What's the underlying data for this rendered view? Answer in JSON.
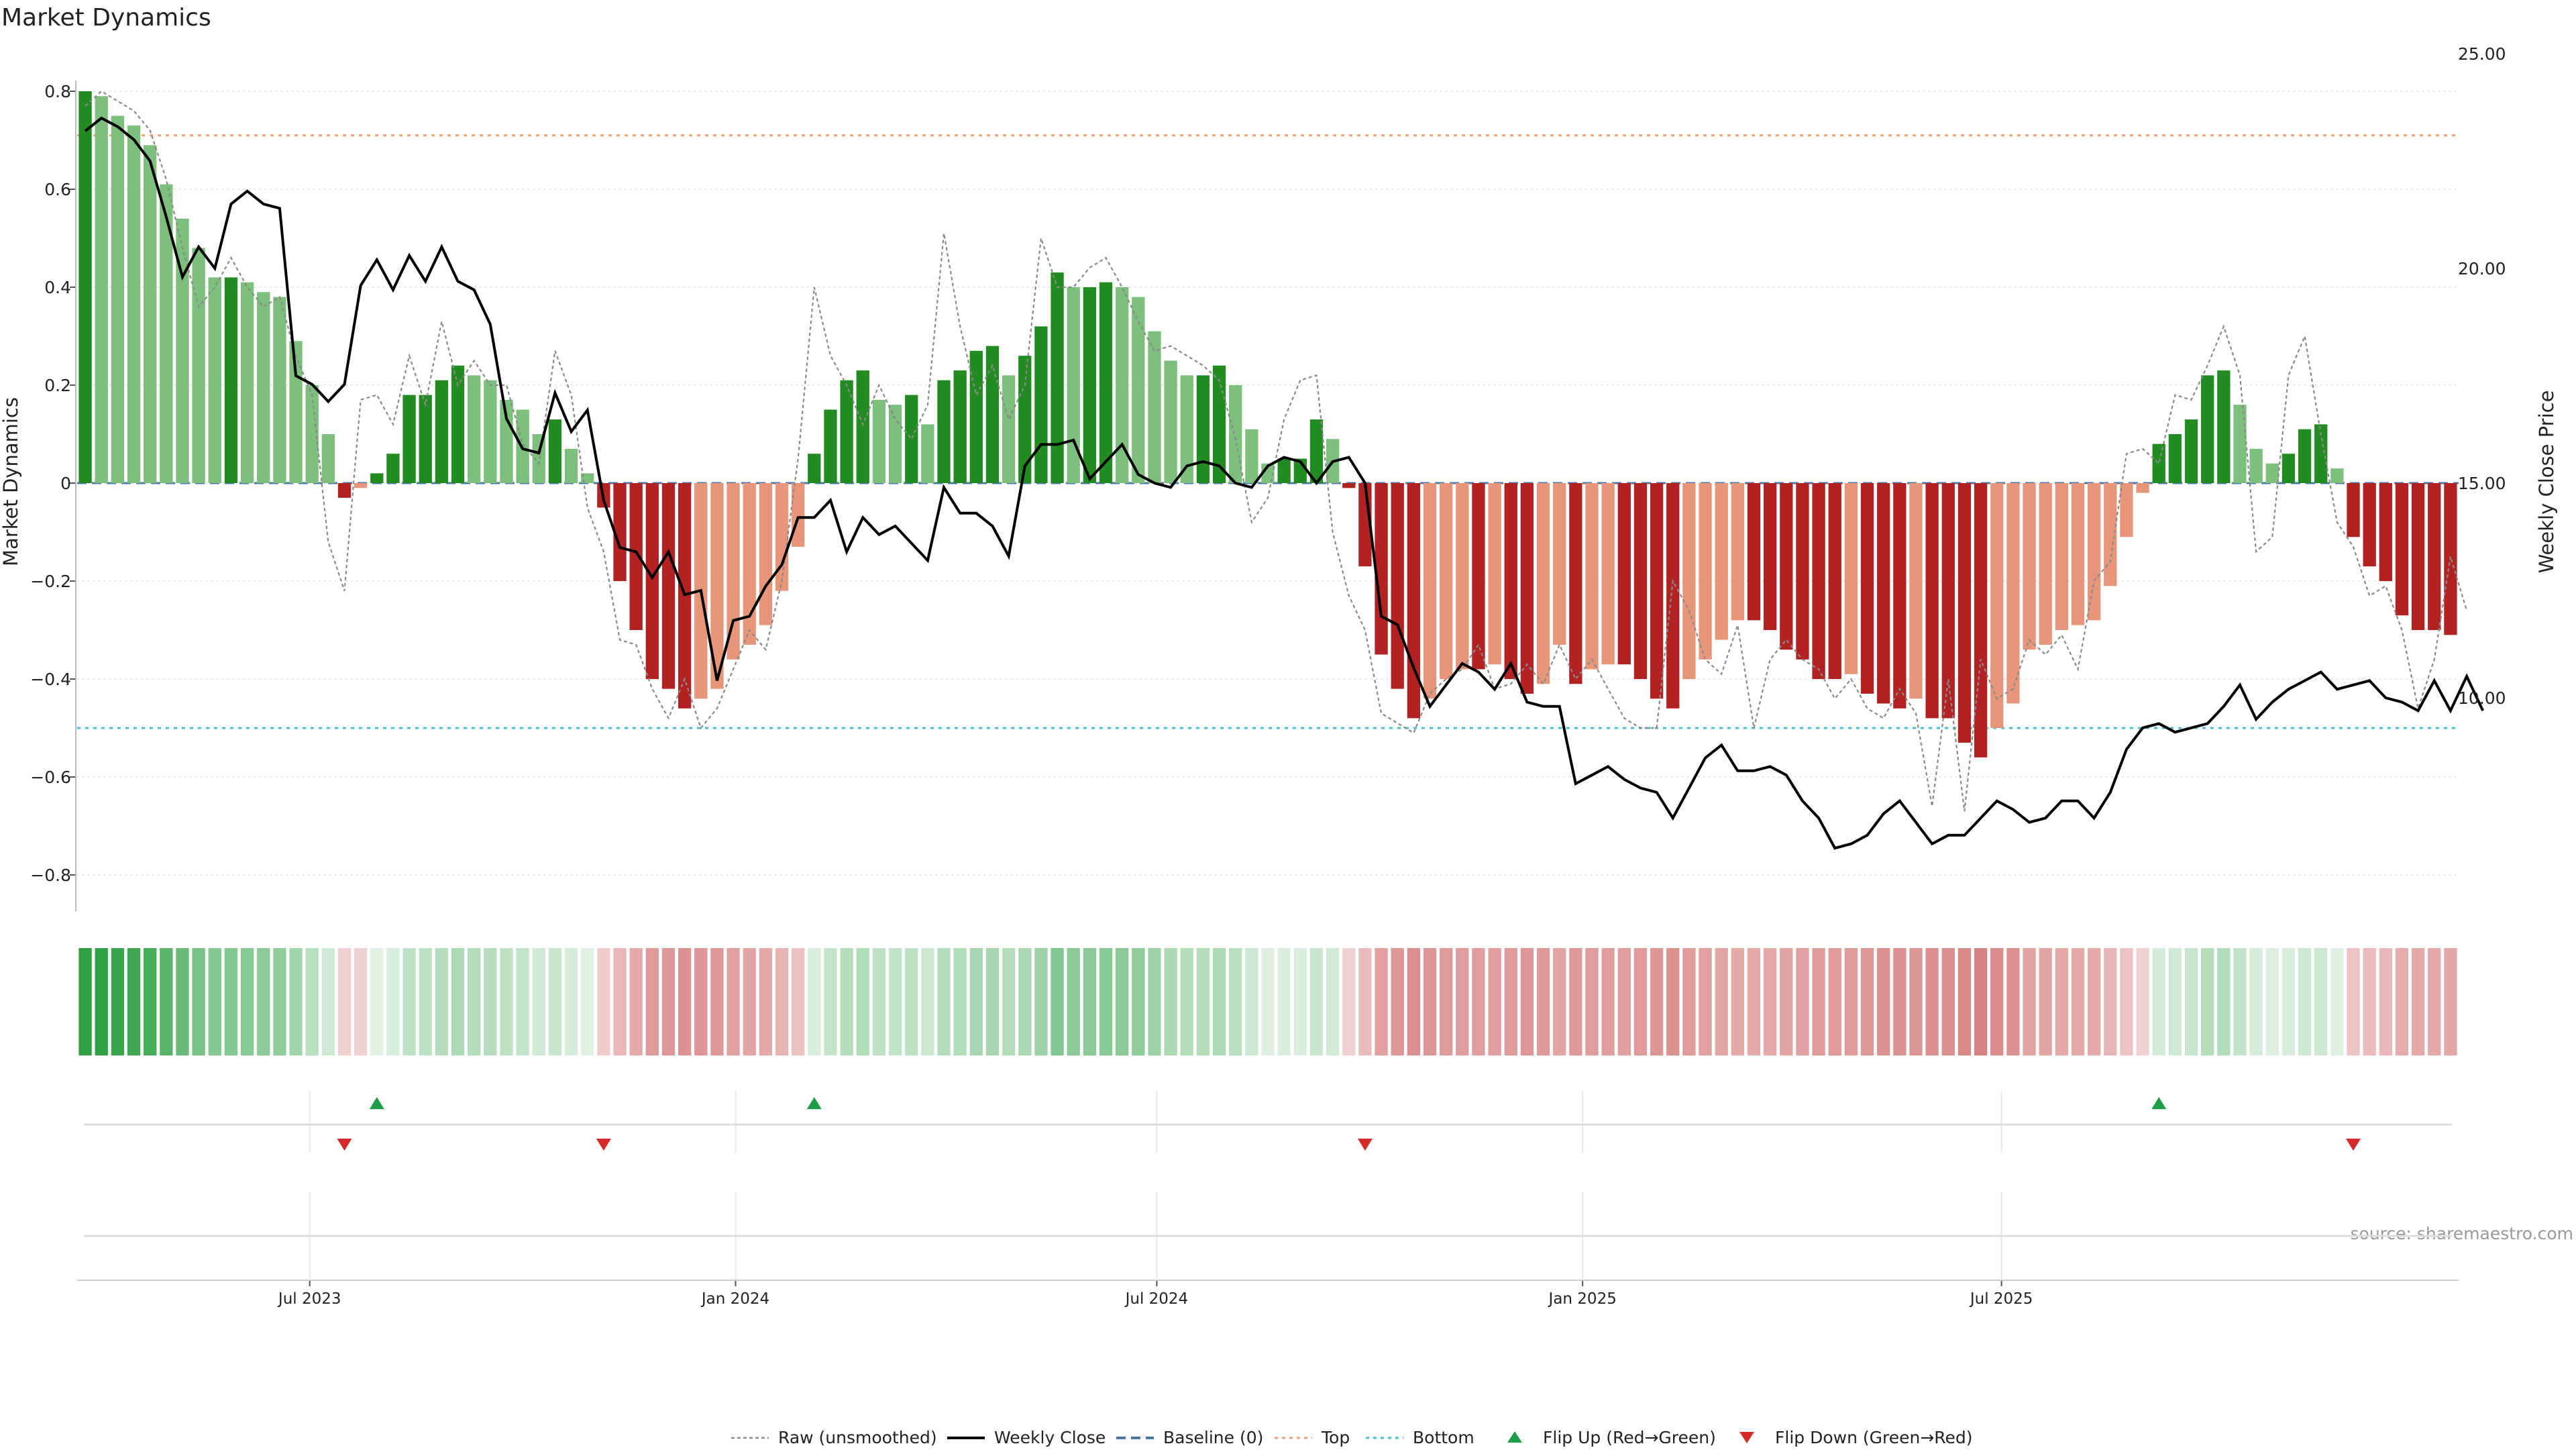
{
  "chart_data": {
    "type": "bar",
    "title": "Market Dynamics",
    "ylabel": "Market Dynamics",
    "y2label": "Weekly Close Price",
    "ylim": [
      -0.88,
      0.82
    ],
    "y2lim": [
      5.0,
      25.0
    ],
    "yticks": [
      0.8,
      0.6,
      0.4,
      0.2,
      0,
      -0.2,
      -0.4,
      -0.6,
      -0.8
    ],
    "ytick_labels": [
      "0.8",
      "0.6",
      "0.4",
      "0.2",
      "0",
      "−0.2",
      "−0.4",
      "−0.6",
      "−0.8"
    ],
    "y2ticks": [
      25,
      20,
      15,
      10
    ],
    "y2tick_labels": [
      "25.00",
      "20.00",
      "15.00",
      "10.00"
    ],
    "x_start": "2023-03-26",
    "x_interval_days": 7,
    "xticks": [
      {
        "date": "2023-07-01",
        "label": "Jul 2023"
      },
      {
        "date": "2024-01-01",
        "label": "Jan 2024"
      },
      {
        "date": "2024-07-01",
        "label": "Jul 2024"
      },
      {
        "date": "2025-01-01",
        "label": "Jan 2025"
      },
      {
        "date": "2025-07-01",
        "label": "Jul 2025"
      }
    ],
    "top_line": 0.71,
    "bottom_line": -0.5,
    "baseline": 0,
    "smoothed": [
      0.8,
      0.79,
      0.75,
      0.73,
      0.69,
      0.61,
      0.54,
      0.48,
      0.42,
      0.42,
      0.41,
      0.39,
      0.38,
      0.29,
      0.2,
      0.1,
      -0.03,
      -0.01,
      0.02,
      0.06,
      0.18,
      0.18,
      0.21,
      0.24,
      0.22,
      0.21,
      0.17,
      0.15,
      0.1,
      0.13,
      0.07,
      0.02,
      -0.05,
      -0.2,
      -0.3,
      -0.4,
      -0.42,
      -0.46,
      -0.44,
      -0.42,
      -0.36,
      -0.33,
      -0.29,
      -0.22,
      -0.13,
      0.06,
      0.15,
      0.21,
      0.23,
      0.17,
      0.16,
      0.18,
      0.12,
      0.21,
      0.23,
      0.27,
      0.28,
      0.22,
      0.26,
      0.32,
      0.43,
      0.4,
      0.4,
      0.41,
      0.4,
      0.38,
      0.31,
      0.25,
      0.22,
      0.22,
      0.24,
      0.2,
      0.11,
      0.04,
      0.05,
      0.05,
      0.13,
      0.09,
      -0.01,
      -0.17,
      -0.35,
      -0.42,
      -0.48,
      -0.44,
      -0.4,
      -0.38,
      -0.38,
      -0.37,
      -0.4,
      -0.43,
      -0.41,
      -0.33,
      -0.41,
      -0.38,
      -0.37,
      -0.37,
      -0.4,
      -0.44,
      -0.46,
      -0.4,
      -0.36,
      -0.32,
      -0.28,
      -0.28,
      -0.3,
      -0.34,
      -0.36,
      -0.4,
      -0.4,
      -0.39,
      -0.43,
      -0.45,
      -0.46,
      -0.44,
      -0.48,
      -0.48,
      -0.53,
      -0.56,
      -0.5,
      -0.45,
      -0.34,
      -0.33,
      -0.3,
      -0.29,
      -0.28,
      -0.21,
      -0.11,
      -0.02,
      0.08,
      0.1,
      0.13,
      0.22,
      0.23,
      0.16,
      0.07,
      0.04,
      0.06,
      0.11,
      0.12,
      0.03,
      -0.11,
      -0.17,
      -0.2,
      -0.27,
      -0.3,
      -0.3,
      -0.31
    ],
    "raw": [
      0.77,
      0.8,
      0.78,
      0.76,
      0.72,
      0.62,
      0.48,
      0.36,
      0.4,
      0.46,
      0.4,
      0.36,
      0.38,
      0.26,
      0.18,
      -0.12,
      -0.22,
      0.17,
      0.18,
      0.12,
      0.26,
      0.16,
      0.33,
      0.2,
      0.25,
      0.2,
      0.2,
      0.08,
      0.04,
      0.27,
      0.18,
      -0.05,
      -0.14,
      -0.32,
      -0.33,
      -0.42,
      -0.48,
      -0.4,
      -0.5,
      -0.46,
      -0.38,
      -0.3,
      -0.34,
      -0.2,
      0.05,
      0.4,
      0.26,
      0.2,
      0.12,
      0.2,
      0.13,
      0.09,
      0.16,
      0.51,
      0.32,
      0.18,
      0.24,
      0.13,
      0.2,
      0.5,
      0.4,
      0.4,
      0.44,
      0.46,
      0.4,
      0.33,
      0.27,
      0.28,
      0.26,
      0.24,
      0.21,
      0.09,
      -0.08,
      -0.03,
      0.13,
      0.21,
      0.22,
      -0.1,
      -0.23,
      -0.3,
      -0.47,
      -0.49,
      -0.51,
      -0.43,
      -0.4,
      -0.38,
      -0.33,
      -0.42,
      -0.41,
      -0.37,
      -0.41,
      -0.33,
      -0.4,
      -0.36,
      -0.42,
      -0.48,
      -0.5,
      -0.5,
      -0.2,
      -0.26,
      -0.36,
      -0.39,
      -0.29,
      -0.5,
      -0.36,
      -0.32,
      -0.36,
      -0.38,
      -0.44,
      -0.4,
      -0.46,
      -0.48,
      -0.42,
      -0.47,
      -0.66,
      -0.4,
      -0.67,
      -0.36,
      -0.44,
      -0.42,
      -0.32,
      -0.35,
      -0.31,
      -0.38,
      -0.2,
      -0.16,
      0.06,
      0.07,
      0.04,
      0.18,
      0.17,
      0.24,
      0.32,
      0.22,
      -0.14,
      -0.11,
      0.22,
      0.3,
      0.1,
      -0.08,
      -0.13,
      -0.23,
      -0.21,
      -0.3,
      -0.46,
      -0.36,
      -0.15,
      -0.26
    ],
    "close": [
      23.2,
      23.5,
      23.3,
      23.0,
      22.5,
      21.2,
      19.8,
      20.5,
      20.0,
      21.5,
      21.8,
      21.5,
      21.4,
      17.5,
      17.3,
      16.9,
      17.3,
      19.6,
      20.2,
      19.5,
      20.3,
      19.7,
      20.5,
      19.7,
      19.5,
      18.7,
      16.5,
      15.8,
      15.7,
      17.1,
      16.2,
      16.7,
      14.6,
      13.5,
      13.4,
      12.8,
      13.4,
      12.4,
      12.5,
      10.4,
      11.8,
      11.9,
      12.6,
      13.1,
      14.2,
      14.2,
      14.6,
      13.4,
      14.2,
      13.8,
      14.0,
      13.6,
      13.2,
      14.9,
      14.3,
      14.3,
      14.0,
      13.3,
      15.4,
      15.9,
      15.9,
      16.0,
      15.1,
      15.5,
      15.9,
      15.2,
      15.0,
      14.9,
      15.4,
      15.5,
      15.4,
      15.0,
      14.9,
      15.4,
      15.6,
      15.5,
      15.0,
      15.5,
      15.6,
      15.0,
      11.9,
      11.7,
      10.7,
      9.8,
      10.3,
      10.8,
      10.6,
      10.2,
      10.8,
      9.9,
      9.8,
      9.8,
      8.0,
      8.2,
      8.4,
      8.1,
      7.9,
      7.8,
      7.2,
      7.9,
      8.6,
      8.9,
      8.3,
      8.3,
      8.4,
      8.2,
      7.6,
      7.2,
      6.5,
      6.6,
      6.8,
      7.3,
      7.6,
      7.1,
      6.6,
      6.8,
      6.8,
      7.2,
      7.6,
      7.4,
      7.1,
      7.2,
      7.6,
      7.6,
      7.2,
      7.8,
      8.8,
      9.3,
      9.4,
      9.2,
      9.3,
      9.4,
      9.8,
      10.3,
      9.5,
      9.9,
      10.2,
      10.4,
      10.6,
      10.2,
      10.3,
      10.4,
      10.0,
      9.9,
      9.7,
      10.4,
      9.7,
      10.5,
      9.7
    ],
    "flip_up_idx": [
      18,
      45,
      128
    ],
    "flip_down_idx": [
      16,
      32,
      79,
      140
    ],
    "legend": [
      {
        "key": "raw",
        "label": "Raw (unsmoothed)"
      },
      {
        "key": "close",
        "label": "Weekly Close"
      },
      {
        "key": "baseline",
        "label": "Baseline (0)"
      },
      {
        "key": "top",
        "label": "Top"
      },
      {
        "key": "bottom",
        "label": "Bottom"
      },
      {
        "key": "flip_up",
        "label": "Flip Up (Red→Green)"
      },
      {
        "key": "flip_down",
        "label": "Flip Down (Green→Red)"
      }
    ],
    "legend_position": "bottom-center",
    "grid": true,
    "source": "source: sharemaestro.com",
    "colors": {
      "green_strong": "#228b22",
      "green_light": "#7dbf7d",
      "red_strong": "#b22222",
      "red_light": "#e8967a",
      "raw_line": "#8a8a8a",
      "close_line": "#000000",
      "baseline": "#4a78a8",
      "top": "#f0a070",
      "bottom": "#40c0d0",
      "marker_up": "#1f9e4a",
      "marker_down": "#d42a2a",
      "grid": "#e4e4e4"
    }
  }
}
